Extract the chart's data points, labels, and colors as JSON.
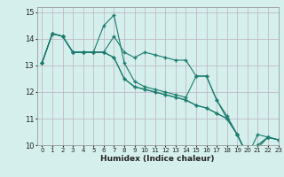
{
  "xlabel": "Humidex (Indice chaleur)",
  "bg_color": "#d5f0ec",
  "grid_color": "#c0b8c8",
  "line_color": "#1a7a6e",
  "xlim": [
    -0.5,
    23
  ],
  "ylim": [
    10,
    15.2
  ],
  "yticks": [
    10,
    11,
    12,
    13,
    14,
    15
  ],
  "xticks": [
    0,
    1,
    2,
    3,
    4,
    5,
    6,
    7,
    8,
    9,
    10,
    11,
    12,
    13,
    14,
    15,
    16,
    17,
    18,
    19,
    20,
    21,
    22,
    23
  ],
  "series": [
    [
      13.1,
      14.2,
      14.1,
      13.5,
      13.5,
      13.5,
      13.5,
      14.1,
      13.5,
      13.3,
      13.5,
      13.4,
      13.3,
      13.2,
      13.2,
      12.6,
      12.6,
      11.7,
      11.0,
      10.4,
      9.6,
      10.4,
      10.3,
      10.2
    ],
    [
      13.1,
      14.2,
      14.1,
      13.5,
      13.5,
      13.5,
      14.5,
      14.9,
      13.1,
      12.4,
      12.2,
      12.1,
      12.0,
      11.9,
      11.8,
      12.6,
      12.6,
      11.7,
      11.1,
      10.4,
      9.6,
      10.0,
      10.3,
      10.2
    ],
    [
      13.1,
      14.2,
      14.1,
      13.5,
      13.5,
      13.5,
      13.5,
      13.3,
      12.5,
      12.2,
      12.1,
      12.0,
      11.9,
      11.8,
      11.7,
      11.5,
      11.4,
      11.2,
      11.0,
      10.4,
      9.6,
      10.0,
      10.3,
      10.2
    ],
    [
      13.1,
      14.2,
      14.1,
      13.5,
      13.5,
      13.5,
      13.5,
      13.3,
      12.5,
      12.2,
      12.1,
      12.0,
      11.9,
      11.8,
      11.7,
      11.5,
      11.4,
      11.2,
      11.0,
      10.4,
      9.6,
      9.9,
      10.3,
      10.2
    ]
  ]
}
